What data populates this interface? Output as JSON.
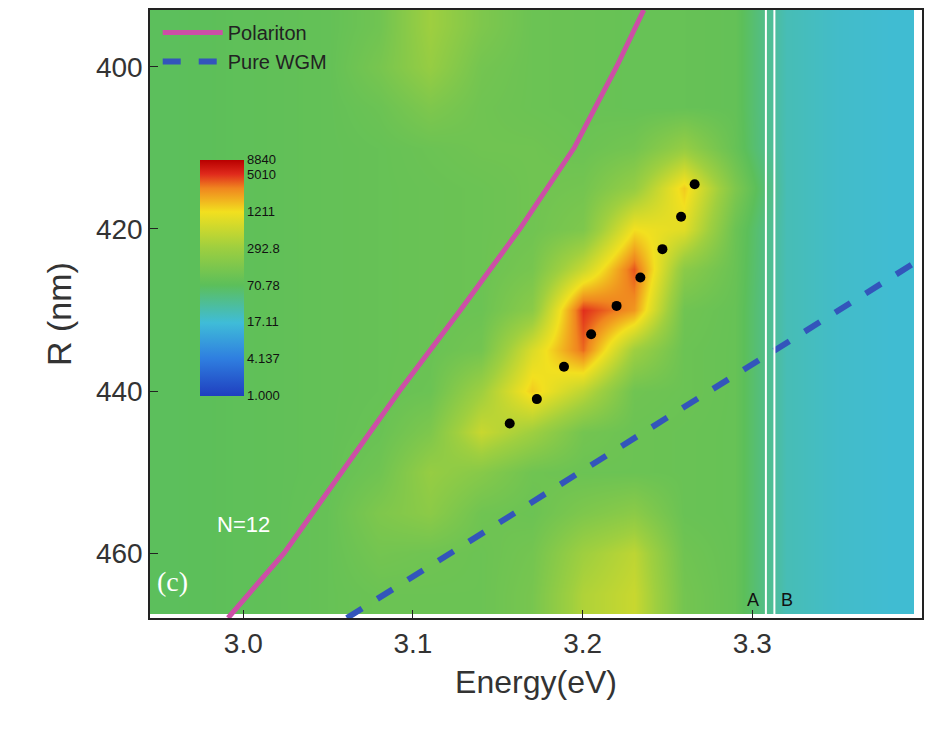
{
  "chart_data": {
    "type": "heatmap",
    "x_label": "Energy(eV)",
    "y_label": "R (nm)",
    "xlim": [
      2.945,
      3.4
    ],
    "ylim": [
      468,
      393
    ],
    "xticks": [
      {
        "value": 3,
        "label": "3.0"
      },
      3.1,
      3.2,
      3.3
    ],
    "yticks": [
      400,
      420,
      440,
      460
    ],
    "legend": "upper left",
    "heatmap": {
      "x": [
        2.96,
        2.99,
        3.02,
        3.05,
        3.08,
        3.11,
        3.14,
        3.17,
        3.2,
        3.23,
        3.26,
        3.29,
        3.32,
        3.35,
        3.38
      ],
      "y": [
        395,
        400,
        405,
        410,
        415,
        420,
        425,
        430,
        435,
        440,
        445,
        450,
        455,
        460,
        465
      ],
      "z": [
        [
          70,
          75,
          80,
          85,
          110,
          300,
          150,
          100,
          95,
          90,
          90,
          85,
          25,
          20,
          18
        ],
        [
          70,
          75,
          80,
          85,
          130,
          250,
          120,
          100,
          95,
          90,
          90,
          85,
          25,
          20,
          18
        ],
        [
          70,
          75,
          80,
          85,
          100,
          150,
          110,
          100,
          95,
          90,
          90,
          85,
          25,
          20,
          18
        ],
        [
          70,
          75,
          80,
          85,
          90,
          100,
          110,
          110,
          100,
          120,
          250,
          90,
          25,
          20,
          18
        ],
        [
          70,
          75,
          80,
          85,
          90,
          95,
          100,
          110,
          120,
          250,
          1500,
          150,
          25,
          20,
          18
        ],
        [
          70,
          75,
          80,
          85,
          90,
          95,
          100,
          110,
          150,
          1200,
          900,
          100,
          25,
          20,
          18
        ],
        [
          70,
          75,
          80,
          85,
          90,
          95,
          100,
          130,
          600,
          4000,
          200,
          95,
          25,
          20,
          18
        ],
        [
          70,
          75,
          80,
          85,
          90,
          95,
          100,
          200,
          5000,
          2500,
          110,
          90,
          25,
          20,
          18
        ],
        [
          70,
          75,
          80,
          85,
          90,
          95,
          120,
          800,
          3500,
          300,
          100,
          90,
          25,
          20,
          18
        ],
        [
          70,
          75,
          80,
          85,
          90,
          100,
          300,
          1500,
          500,
          110,
          100,
          90,
          25,
          20,
          18
        ],
        [
          70,
          75,
          80,
          85,
          95,
          150,
          600,
          300,
          120,
          100,
          95,
          90,
          25,
          20,
          18
        ],
        [
          70,
          75,
          80,
          85,
          110,
          250,
          180,
          110,
          100,
          100,
          95,
          90,
          25,
          20,
          18
        ],
        [
          70,
          75,
          80,
          90,
          150,
          200,
          110,
          100,
          150,
          200,
          95,
          90,
          25,
          20,
          18
        ],
        [
          70,
          75,
          80,
          90,
          120,
          110,
          100,
          120,
          300,
          500,
          110,
          90,
          25,
          20,
          18
        ],
        [
          70,
          75,
          80,
          90,
          100,
          100,
          100,
          130,
          400,
          600,
          120,
          90,
          25,
          20,
          18
        ]
      ],
      "colorbar": {
        "scale": "log",
        "range": [
          1,
          8840
        ],
        "ticks": [
          {
            "value": 1,
            "label": "1.000"
          },
          4.137,
          17.11,
          70.78,
          292.8,
          1211,
          5010,
          8840
        ]
      }
    },
    "series": [
      {
        "name": "Polariton",
        "type": "line",
        "line_style": "solid",
        "color": "#cc4fa6",
        "x": [
          2.991,
          3.024,
          3.092,
          3.128,
          3.163,
          3.195,
          3.22,
          3.236
        ],
        "y": [
          468,
          460,
          440,
          430,
          420,
          410,
          400,
          393
        ]
      },
      {
        "name": "Pure WGM",
        "type": "line",
        "line_style": "dashed",
        "color": "#3355bb",
        "x": [
          3.061,
          3.407
        ],
        "y": [
          468,
          422.7
        ]
      },
      {
        "type": "scatter",
        "marker": "circle",
        "color": "#000000",
        "x": [
          3.157,
          3.173,
          3.189,
          3.205,
          3.22,
          3.234,
          3.247,
          3.258,
          3.266
        ],
        "y": [
          444,
          441,
          437,
          433,
          429.5,
          426,
          422.5,
          418.5,
          414.5
        ]
      }
    ],
    "vertical_lines": [
      {
        "x": 3.308,
        "label": "A",
        "color": "#ffffff"
      },
      {
        "x": 3.313,
        "label": "B",
        "color": "#ffffff"
      }
    ],
    "annotations": [
      {
        "text": "N=12",
        "x": 3.0,
        "y": 456.5
      },
      {
        "text": "(c)",
        "x": 2.958,
        "y": 463.5
      }
    ]
  }
}
